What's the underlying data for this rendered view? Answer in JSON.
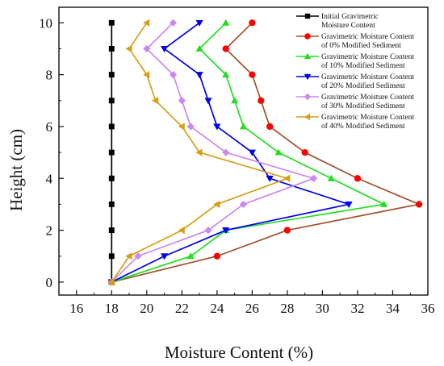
{
  "chart_data": {
    "type": "line",
    "xlabel": "Moisture Content (%)",
    "ylabel": "Height (cm)",
    "xlim": [
      15,
      36
    ],
    "ylim": [
      -0.5,
      10.6
    ],
    "xticks": [
      16,
      18,
      20,
      22,
      24,
      26,
      28,
      30,
      32,
      34,
      36
    ],
    "yticks": [
      0,
      2,
      4,
      6,
      8,
      10
    ],
    "grid": false,
    "legend_position": "top-right",
    "series": [
      {
        "name": "Initial Gravimetric Moisture Content",
        "color": "#000000",
        "marker": "square",
        "points": [
          [
            18,
            0
          ],
          [
            18,
            1
          ],
          [
            18,
            2
          ],
          [
            18,
            3
          ],
          [
            18,
            4
          ],
          [
            18,
            5
          ],
          [
            18,
            6
          ],
          [
            18,
            7
          ],
          [
            18,
            8
          ],
          [
            18,
            9
          ],
          [
            18,
            10
          ]
        ]
      },
      {
        "name": "Gravimetric Moisture Content of 0% Modified Sediment",
        "color": "#ff0000",
        "line_color": "#a0522d",
        "marker": "circle",
        "points": [
          [
            18,
            0
          ],
          [
            24,
            1
          ],
          [
            28,
            2
          ],
          [
            35.5,
            3
          ],
          [
            32,
            4
          ],
          [
            29,
            5
          ],
          [
            27,
            6
          ],
          [
            26.5,
            7
          ],
          [
            26,
            8
          ],
          [
            24.5,
            9
          ],
          [
            26,
            10
          ]
        ]
      },
      {
        "name": "Gravimetric Moisture Content of 10% Modified Sediment",
        "color": "#22dd22",
        "marker": "triangle-up",
        "points": [
          [
            18,
            0
          ],
          [
            22.5,
            1
          ],
          [
            24.5,
            2
          ],
          [
            33.5,
            3
          ],
          [
            30.5,
            4
          ],
          [
            27.5,
            5
          ],
          [
            25.5,
            6
          ],
          [
            25,
            7
          ],
          [
            24.5,
            8
          ],
          [
            23,
            9
          ],
          [
            24.5,
            10
          ]
        ]
      },
      {
        "name": "Gravimetric Moisture Content of 20% Modified Sediment",
        "color": "#0000ee",
        "marker": "triangle-down",
        "points": [
          [
            18,
            0
          ],
          [
            21,
            1
          ],
          [
            24.5,
            2
          ],
          [
            31.5,
            3
          ],
          [
            27,
            4
          ],
          [
            26,
            5
          ],
          [
            24,
            6
          ],
          [
            23.5,
            7
          ],
          [
            23,
            8
          ],
          [
            21,
            9
          ],
          [
            23,
            10
          ]
        ]
      },
      {
        "name": "Gravimetric Moisture Content of 30% Modified Sediment",
        "color": "#cc88ee",
        "marker": "diamond",
        "points": [
          [
            18,
            0
          ],
          [
            19.5,
            1
          ],
          [
            23.5,
            2
          ],
          [
            25.5,
            3
          ],
          [
            29.5,
            4
          ],
          [
            24.5,
            5
          ],
          [
            22.5,
            6
          ],
          [
            22,
            7
          ],
          [
            21.5,
            8
          ],
          [
            20,
            9
          ],
          [
            21.5,
            10
          ]
        ]
      },
      {
        "name": "Gravimetric Moisture Content of 40% Modified Sediment",
        "color": "#d4a017",
        "marker": "triangle-left",
        "points": [
          [
            18,
            0
          ],
          [
            19,
            1
          ],
          [
            22,
            2
          ],
          [
            24,
            3
          ],
          [
            28,
            4
          ],
          [
            23,
            5
          ],
          [
            22,
            6
          ],
          [
            20.5,
            7
          ],
          [
            20,
            8
          ],
          [
            19,
            9
          ],
          [
            20,
            10
          ]
        ]
      }
    ],
    "legend_entries": [
      [
        "Initial Gravimetric",
        "Moisture Content"
      ],
      [
        "Gravimetric Moisture Content",
        "of 0% Modified Sediment"
      ],
      [
        "Gravimetric Moisture Content",
        "of 10% Modified Sediment"
      ],
      [
        "Gravimetric Moisture Content",
        "of 20% Modified Sediment"
      ],
      [
        "Gravimetric Moisture Content",
        "of 30% Modified Sediment"
      ],
      [
        "Gravimetric Moisture Content",
        "of 40% Modified Sediment"
      ]
    ]
  }
}
